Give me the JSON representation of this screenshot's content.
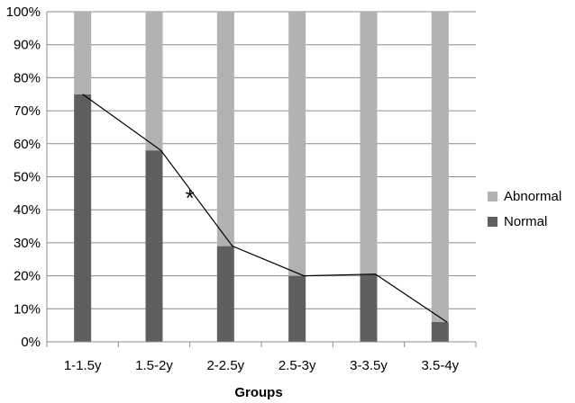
{
  "chart_data": {
    "type": "bar",
    "stacked": true,
    "categories": [
      "1-1.5y",
      "1.5-2y",
      "2-2.5y",
      "2.5-3y",
      "3-3.5y",
      "3.5-4y"
    ],
    "series": [
      {
        "name": "Normal",
        "values": [
          75,
          58,
          29,
          20,
          20.5,
          6
        ],
        "color": "#5f5f5f"
      },
      {
        "name": "Abnormal",
        "values": [
          25,
          42,
          71,
          80,
          79.5,
          94
        ],
        "color": "#b2b2b2"
      }
    ],
    "trend_line": {
      "series": "Normal",
      "color": "#000000"
    },
    "xlabel": "Groups",
    "ylabel": "",
    "ylim": [
      0,
      100
    ],
    "y_ticks": [
      "0%",
      "10%",
      "20%",
      "30%",
      "40%",
      "50%",
      "60%",
      "70%",
      "80%",
      "90%",
      "100%"
    ],
    "grid": true,
    "legend": {
      "position": "right",
      "order": [
        "Abnormal",
        "Normal"
      ]
    },
    "annotations": [
      {
        "text": "*",
        "between": [
          "1.5-2y",
          "2-2.5y"
        ],
        "y": 45
      }
    ]
  }
}
